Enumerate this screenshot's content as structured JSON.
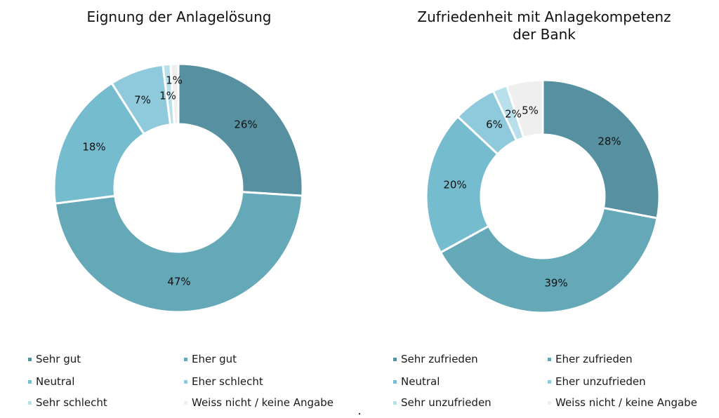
{
  "chart_data": [
    {
      "type": "pie",
      "title": "Eignung der Anlagelösung",
      "categories": [
        "Sehr gut",
        "Eher gut",
        "Neutral",
        "Eher schlecht",
        "Sehr schlecht",
        "Weiss nicht / keine Angabe"
      ],
      "values": [
        26,
        47,
        18,
        7,
        1,
        1
      ],
      "labels": [
        "26%",
        "47%",
        "18%",
        "7%",
        "1%",
        "1%"
      ],
      "colors": [
        "#5790a0",
        "#65a8b8",
        "#75bccf",
        "#8fcadc",
        "#b8dfea",
        "#efefef"
      ],
      "legend": "bottom"
    },
    {
      "type": "pie",
      "title": "Zufriedenheit mit Anlagekompetenz der Bank",
      "categories": [
        "Sehr zufrieden",
        "Eher zufrieden",
        "Neutral",
        "Eher unzufrieden",
        "Sehr unzufrieden",
        "Weiss nicht / keine Angabe"
      ],
      "values": [
        28,
        39,
        20,
        6,
        2,
        5
      ],
      "labels": [
        "28%",
        "39%",
        "20%",
        "6%",
        "2%",
        "5%"
      ],
      "colors": [
        "#5790a0",
        "#65a8b8",
        "#75bccf",
        "#8fcadc",
        "#b8dfea",
        "#efefef"
      ],
      "legend": "bottom"
    }
  ]
}
